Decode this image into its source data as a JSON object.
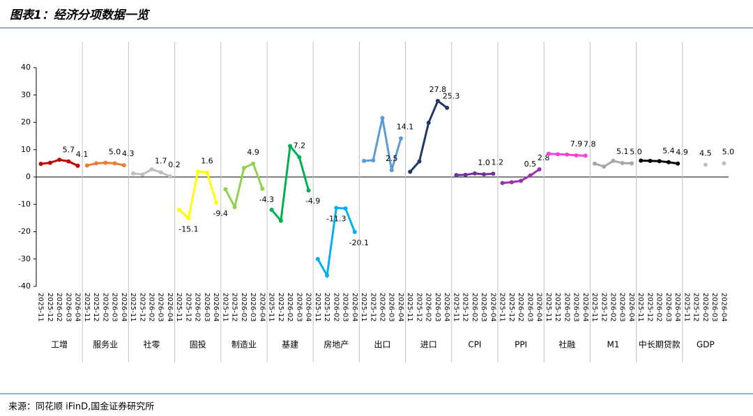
{
  "chart_data": {
    "type": "line",
    "title": "图表1：经济分项数据一览",
    "source": "来源：同花顺 iFinD,国金证券研究所",
    "categories": [
      "2025-11",
      "2025-12",
      "2026-02",
      "2026-03",
      "2026-04"
    ],
    "ylim": [
      -40,
      40
    ],
    "yticks": [
      -40,
      -30,
      -20,
      -10,
      0,
      10,
      20,
      30,
      40
    ],
    "series": [
      {
        "name": "工增",
        "color": "#c00000",
        "values": [
          4.8,
          5.2,
          6.3,
          5.7,
          4.1
        ],
        "value_labels": [
          null,
          null,
          null,
          "5.7",
          "4.1"
        ]
      },
      {
        "name": "服务业",
        "color": "#ed7d31",
        "values": [
          4.2,
          5.0,
          5.2,
          5.0,
          4.3
        ],
        "value_labels": [
          null,
          null,
          null,
          "5.0",
          "4.3"
        ]
      },
      {
        "name": "社零",
        "color": "#bfbfbf",
        "values": [
          1.3,
          0.9,
          2.8,
          1.7,
          0.2
        ],
        "value_labels": [
          null,
          null,
          null,
          "1.7",
          "0.2"
        ]
      },
      {
        "name": "固投",
        "color": "#ffff00",
        "values": [
          -12,
          -15.1,
          2,
          1.6,
          -9.4
        ],
        "value_labels": [
          null,
          "-15.1",
          null,
          "1.6",
          "-9.4"
        ]
      },
      {
        "name": "制造业",
        "color": "#92d050",
        "values": [
          -4.5,
          -11,
          3.3,
          4.9,
          -4.3
        ],
        "value_labels": [
          null,
          null,
          null,
          "4.9",
          "-4.3"
        ]
      },
      {
        "name": "基建",
        "color": "#00b050",
        "values": [
          -12,
          -16,
          11.3,
          7.2,
          -4.9
        ],
        "value_labels": [
          null,
          null,
          null,
          "7.2",
          "-4.9"
        ]
      },
      {
        "name": "房地产",
        "color": "#00b0f0",
        "values": [
          -30,
          -36,
          -11.3,
          -11.5,
          -20.1
        ],
        "value_labels": [
          null,
          null,
          "-11.3",
          null,
          "-20.1"
        ]
      },
      {
        "name": "出口",
        "color": "#5b9bd5",
        "values": [
          5.9,
          6.1,
          21.6,
          2.5,
          14.1
        ],
        "value_labels": [
          null,
          null,
          null,
          "2.5",
          "14.1"
        ]
      },
      {
        "name": "进口",
        "color": "#1f3864",
        "values": [
          1.9,
          5.7,
          19.8,
          27.8,
          25.3
        ],
        "value_labels": [
          null,
          null,
          null,
          "27.8",
          "25.3"
        ]
      },
      {
        "name": "CPI",
        "color": "#7030a0",
        "values": [
          0.7,
          0.8,
          1.3,
          1.0,
          1.2
        ],
        "value_labels": [
          null,
          null,
          null,
          "1.0",
          "1.2"
        ]
      },
      {
        "name": "PPI",
        "color": "#9b30b0",
        "values": [
          -2.2,
          -1.9,
          -1.4,
          0.5,
          2.8
        ],
        "value_labels": [
          null,
          null,
          null,
          "0.5",
          "2.8"
        ]
      },
      {
        "name": "社融",
        "color": "#ff3fdc",
        "values": [
          8.5,
          8.3,
          8.2,
          7.9,
          7.8
        ],
        "value_labels": [
          null,
          null,
          null,
          "7.9",
          "7.8"
        ]
      },
      {
        "name": "M1",
        "color": "#a6a6a6",
        "values": [
          4.9,
          3.8,
          5.9,
          5.1,
          5.0
        ],
        "value_labels": [
          null,
          null,
          null,
          "5.1",
          "5.0"
        ]
      },
      {
        "name": "中长期贷款",
        "color": "#000000",
        "values": [
          6.0,
          5.9,
          5.8,
          5.4,
          4.9
        ],
        "value_labels": [
          null,
          null,
          null,
          "5.4",
          "4.9"
        ]
      },
      {
        "name": "GDP",
        "color": "#bfbfbf",
        "values": [
          null,
          null,
          4.5,
          null,
          5.0
        ],
        "value_labels": [
          null,
          null,
          "4.5",
          null,
          "5.0"
        ]
      }
    ]
  }
}
